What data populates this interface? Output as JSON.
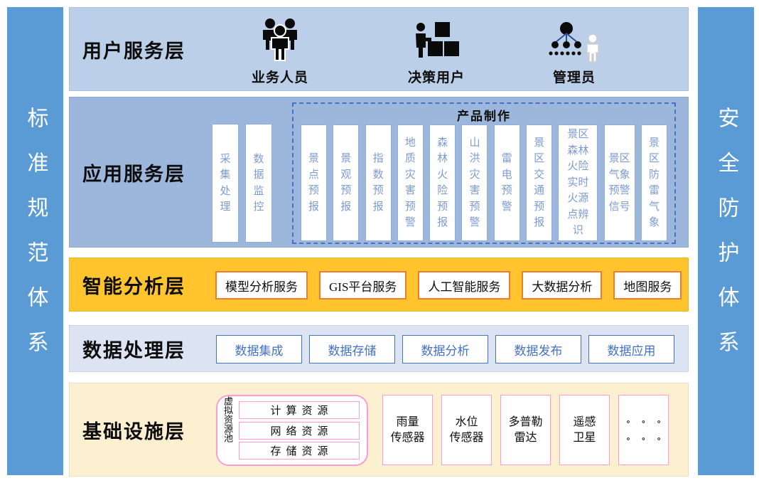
{
  "banners": {
    "left": "标准规范体系",
    "right": "安全防护体系"
  },
  "layers": {
    "user": {
      "title": "用户服务层",
      "roles": [
        {
          "label": "业务人员",
          "icon": "staff-group-icon"
        },
        {
          "label": "决策用户",
          "icon": "decision-user-icon"
        },
        {
          "label": "管理员",
          "icon": "admin-orgchart-icon"
        }
      ]
    },
    "app": {
      "title": "应用服务层",
      "standalone": [
        "采集处理",
        "数据监控"
      ],
      "group_label": "产品制作",
      "products": [
        "景点预报",
        "景观预报",
        "指数预报",
        "地质灾害预警",
        "森林火险预报",
        "山洪灾害预警",
        "雷电预警",
        "景区交通预报",
        "景区森林火险实时火源点辨识",
        "景区气象预警信号",
        "景区防雷气象"
      ]
    },
    "intel": {
      "title": "智能分析层",
      "services": [
        "模型分析服务",
        "GIS平台服务",
        "人工智能服务",
        "大数据分析",
        "地图服务"
      ]
    },
    "data": {
      "title": "数据处理层",
      "services": [
        "数据集成",
        "数据存储",
        "数据分析",
        "数据发布",
        "数据应用"
      ]
    },
    "infra": {
      "title": "基础设施层",
      "pool_label": "虚拟资源池",
      "pool_items": [
        "计算资源",
        "网络资源",
        "存储资源"
      ],
      "devices": [
        {
          "line1": "雨量",
          "line2": "传感器"
        },
        {
          "line1": "水位",
          "line2": "传感器"
        },
        {
          "line1": "多普勒",
          "line2": "雷达"
        },
        {
          "line1": "遥感",
          "line2": "卫星"
        }
      ],
      "ellipsis_row": "∘ ∘ ∘"
    }
  },
  "colors": {
    "sidebar_blue": "#5B9BD5",
    "user_bg": "#BCCFE8",
    "app_bg": "#9DB7DC",
    "column_text": "#7D9BD3",
    "dash_border": "#4472C4",
    "intel_bg": "#FFC42E",
    "intel_border": "#ED7D31",
    "data_bg": "#DCE3F2",
    "data_border": "#4472C4",
    "infra_bg": "#FCF0D0",
    "infra_border": "#FF9BD5"
  }
}
